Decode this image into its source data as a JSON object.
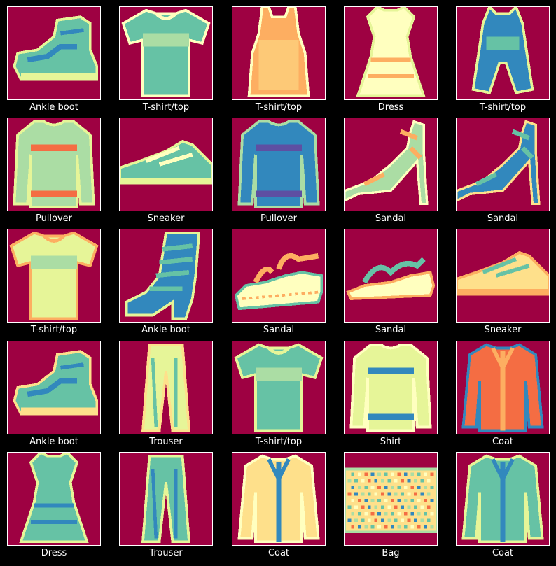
{
  "colors": {
    "background": "#000000",
    "frame": "#ffffff",
    "caption": "#ffffff",
    "colormap": [
      "#9e0142",
      "#d53e4f",
      "#f46d43",
      "#fdae61",
      "#fee08b",
      "#ffffbf",
      "#e6f598",
      "#abdda4",
      "#66c2a5",
      "#3288bd",
      "#5e4fa2"
    ]
  },
  "grid": {
    "rows": 5,
    "columns": 5
  },
  "items": [
    {
      "label": "Ankle boot",
      "icon": "ankle-boot-icon",
      "shape": "boot",
      "fill": "#66c2a5",
      "accent": "#3288bd",
      "edge": "#e6f598"
    },
    {
      "label": "T-shirt/top",
      "icon": "t-shirt-icon",
      "shape": "tee",
      "fill": "#66c2a5",
      "accent": "#abdda4",
      "edge": "#ffffbf"
    },
    {
      "label": "T-shirt/top",
      "icon": "tank-top-icon",
      "shape": "tank",
      "fill": "#fdae61",
      "accent": "#fee08b",
      "edge": "#ffffbf"
    },
    {
      "label": "Dress",
      "icon": "dress-icon",
      "shape": "dress",
      "fill": "#ffffbf",
      "accent": "#fdae61",
      "edge": "#e6f598"
    },
    {
      "label": "T-shirt/top",
      "icon": "romper-icon",
      "shape": "romper",
      "fill": "#3288bd",
      "accent": "#66c2a5",
      "edge": "#e6f598"
    },
    {
      "label": "Pullover",
      "icon": "pullover-icon",
      "shape": "sweater",
      "fill": "#abdda4",
      "accent": "#f46d43",
      "edge": "#e6f598"
    },
    {
      "label": "Sneaker",
      "icon": "sneaker-icon",
      "shape": "sneaker",
      "fill": "#66c2a5",
      "accent": "#ffffbf",
      "edge": "#e6f598"
    },
    {
      "label": "Pullover",
      "icon": "pullover-icon",
      "shape": "sweater",
      "fill": "#3288bd",
      "accent": "#5e4fa2",
      "edge": "#abdda4"
    },
    {
      "label": "Sandal",
      "icon": "sandal-icon",
      "shape": "heel",
      "fill": "#abdda4",
      "accent": "#fdae61",
      "edge": "#ffffbf"
    },
    {
      "label": "Sandal",
      "icon": "sandal-icon",
      "shape": "heel",
      "fill": "#3288bd",
      "accent": "#66c2a5",
      "edge": "#fee08b"
    },
    {
      "label": "T-shirt/top",
      "icon": "t-shirt-icon",
      "shape": "tee",
      "fill": "#e6f598",
      "accent": "#abdda4",
      "edge": "#fdae61"
    },
    {
      "label": "Ankle boot",
      "icon": "ankle-boot-icon",
      "shape": "tallboot",
      "fill": "#3288bd",
      "accent": "#66c2a5",
      "edge": "#e6f598"
    },
    {
      "label": "Sandal",
      "icon": "sandal-icon",
      "shape": "platform",
      "fill": "#ffffbf",
      "accent": "#fdae61",
      "edge": "#66c2a5"
    },
    {
      "label": "Sandal",
      "icon": "sandal-icon",
      "shape": "flat",
      "fill": "#ffffbf",
      "accent": "#66c2a5",
      "edge": "#fdae61"
    },
    {
      "label": "Sneaker",
      "icon": "sneaker-icon",
      "shape": "sneaker",
      "fill": "#fee08b",
      "accent": "#66c2a5",
      "edge": "#fdae61"
    },
    {
      "label": "Ankle boot",
      "icon": "ankle-boot-icon",
      "shape": "boot",
      "fill": "#66c2a5",
      "accent": "#3288bd",
      "edge": "#fee08b"
    },
    {
      "label": "Trouser",
      "icon": "trouser-icon",
      "shape": "trouser",
      "fill": "#e6f598",
      "accent": "#66c2a5",
      "edge": "#fee08b"
    },
    {
      "label": "T-shirt/top",
      "icon": "t-shirt-icon",
      "shape": "tee",
      "fill": "#66c2a5",
      "accent": "#abdda4",
      "edge": "#e6f598"
    },
    {
      "label": "Shirt",
      "icon": "shirt-icon",
      "shape": "sweater",
      "fill": "#e6f598",
      "accent": "#3288bd",
      "edge": "#ffffbf"
    },
    {
      "label": "Coat",
      "icon": "coat-icon",
      "shape": "coat",
      "fill": "#f46d43",
      "accent": "#fdae61",
      "edge": "#3288bd"
    },
    {
      "label": "Dress",
      "icon": "dress-icon",
      "shape": "dress",
      "fill": "#66c2a5",
      "accent": "#3288bd",
      "edge": "#e6f598"
    },
    {
      "label": "Trouser",
      "icon": "trouser-icon",
      "shape": "trouser",
      "fill": "#66c2a5",
      "accent": "#3288bd",
      "edge": "#e6f598"
    },
    {
      "label": "Coat",
      "icon": "coat-icon",
      "shape": "coat",
      "fill": "#fee08b",
      "accent": "#3288bd",
      "edge": "#ffffbf"
    },
    {
      "label": "Bag",
      "icon": "bag-icon",
      "shape": "bag",
      "fill": "#fee08b",
      "accent": "#66c2a5",
      "edge": "#abdda4"
    },
    {
      "label": "Coat",
      "icon": "coat-icon",
      "shape": "coat",
      "fill": "#66c2a5",
      "accent": "#3288bd",
      "edge": "#e6f598"
    }
  ]
}
